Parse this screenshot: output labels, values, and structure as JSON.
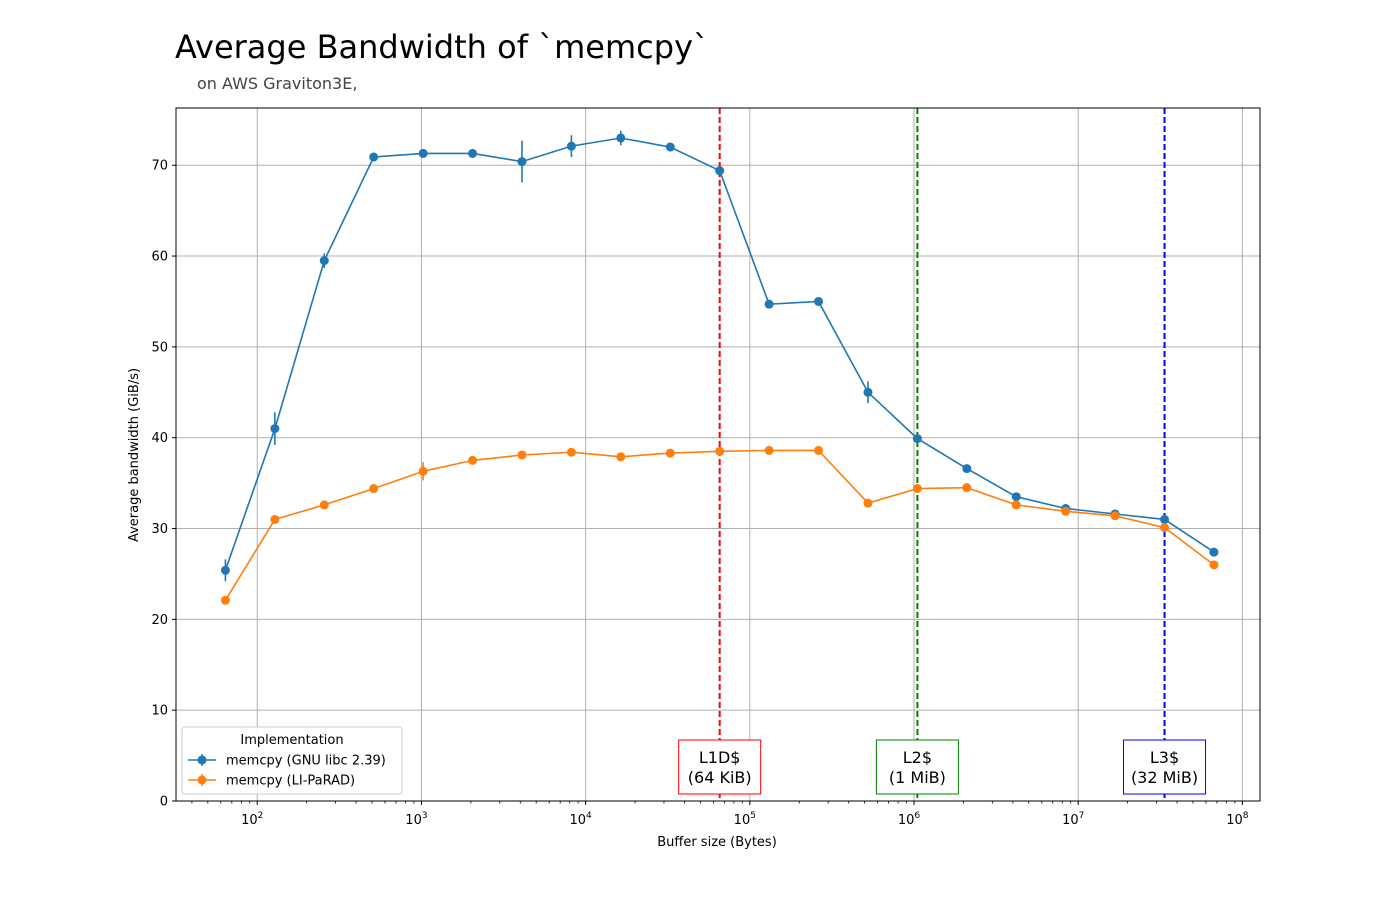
{
  "title": "Average Bandwidth of `memcpy`",
  "subtitle": "on AWS Graviton3E,",
  "chart_data": {
    "type": "line",
    "xlabel": "Buffer size (Bytes)",
    "ylabel": "Average bandwidth (GiB/s)",
    "xscale": "log",
    "xlim": [
      32,
      128000000
    ],
    "ylim": [
      0,
      76.3
    ],
    "grid": true,
    "legend": {
      "title": "Implementation",
      "placement": "lower-left"
    },
    "x": [
      64,
      128,
      256,
      512,
      1024,
      2048,
      4096,
      8192,
      16384,
      32768,
      65536,
      131072,
      262144,
      524288,
      1048576,
      2097152,
      4194304,
      8388608,
      16777216,
      33554432,
      67108864
    ],
    "series": [
      {
        "name": "memcpy (GNU libc 2.39)",
        "color": "#1f77b4",
        "values": [
          25.4,
          41.0,
          59.5,
          70.9,
          71.3,
          71.3,
          70.4,
          72.1,
          73.0,
          72.0,
          69.4,
          54.7,
          55.0,
          45.0,
          39.9,
          36.6,
          33.5,
          32.2,
          31.6,
          31.0,
          27.4
        ],
        "errors": [
          1.2,
          1.8,
          0.8,
          0.2,
          0.2,
          0.1,
          2.3,
          1.2,
          0.8,
          0.4,
          0.4,
          0.2,
          0.2,
          1.2,
          0.3,
          0.2,
          0.2,
          0.2,
          0.2,
          0.2,
          0.2
        ]
      },
      {
        "name": "memcpy (LI-PaRAD)",
        "color": "#ff7f0e",
        "values": [
          22.1,
          31.0,
          32.6,
          34.4,
          36.3,
          37.5,
          38.1,
          38.4,
          37.9,
          38.3,
          38.5,
          38.6,
          38.6,
          32.8,
          34.4,
          34.5,
          32.6,
          31.9,
          31.4,
          30.1,
          26.0
        ],
        "errors": [
          0.2,
          0.2,
          0.2,
          0.2,
          1.0,
          0.2,
          0.2,
          0.2,
          0.2,
          0.2,
          0.2,
          0.2,
          0.2,
          0.2,
          0.2,
          0.2,
          0.2,
          0.2,
          0.2,
          0.2,
          0.2
        ]
      }
    ],
    "vlines": [
      {
        "x": 65536,
        "color": "#ff0000",
        "line1": "L1D$",
        "line2": "(64 KiB)"
      },
      {
        "x": 1048576,
        "color": "#008000",
        "line1": "L2$",
        "line2": "(1 MiB)"
      },
      {
        "x": 33554432,
        "color": "#0000ff",
        "line1": "L3$",
        "line2": "(32 MiB)"
      }
    ],
    "yticks": [
      "0",
      "10",
      "20",
      "30",
      "40",
      "50",
      "60",
      "70"
    ],
    "xticks": [
      {
        "value": 100,
        "base": "10",
        "exp": "2"
      },
      {
        "value": 1000,
        "base": "10",
        "exp": "3"
      },
      {
        "value": 10000,
        "base": "10",
        "exp": "4"
      },
      {
        "value": 100000,
        "base": "10",
        "exp": "5"
      },
      {
        "value": 1000000,
        "base": "10",
        "exp": "6"
      },
      {
        "value": 10000000,
        "base": "10",
        "exp": "7"
      },
      {
        "value": 100000000,
        "base": "10",
        "exp": "8"
      }
    ]
  }
}
